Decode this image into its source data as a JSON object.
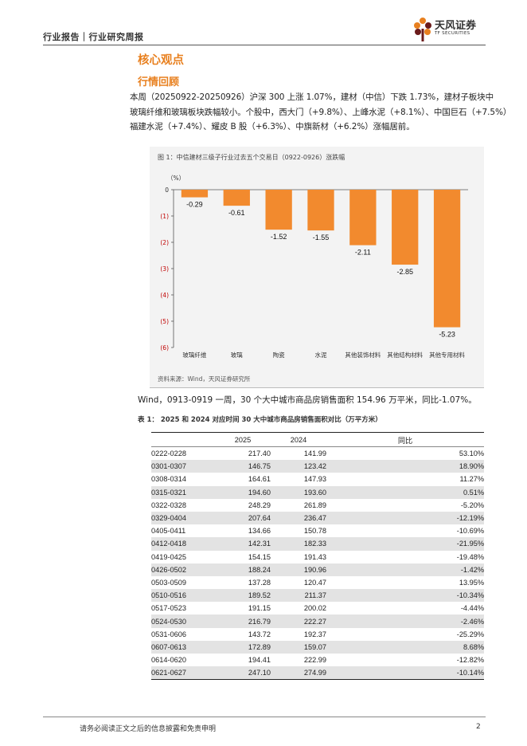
{
  "header": {
    "text": "行业报告｜行业研究周报",
    "logo_name": "天风证券",
    "logo_sub": "TF SECURITIES"
  },
  "sections": {
    "h1": "核心观点",
    "h2": "行情回顾"
  },
  "paragraph": {
    "line1": "本周（20250922-20250926）沪深 300 上涨 1.07%，建材（中信）下跌 1.73%，建材子板块中",
    "line2": "玻璃纤维和玻璃板块跌幅较小。个股中，西大门（+9.8%）、上峰水泥（+8.1%）、中国巨石（+7.5%）",
    "line3": "福建水泥（+7.4%）、耀皮 B 股（+6.3%）、中旗新材（+6.2%）涨幅居前。"
  },
  "figure": {
    "title": "图 1：中信建材三级子行业过去五个交易日（0922-0926）涨跌幅",
    "source": "资料来源：Wind，天风证券研究所"
  },
  "chart_data": {
    "type": "bar",
    "title": "图 1：中信建材三级子行业过去五个交易日（0922-0926）涨跌幅",
    "ylabel": "（%）",
    "categories": [
      "玻璃纤维",
      "玻璃",
      "陶瓷",
      "水泥",
      "其他装饰材料",
      "其他结构材料",
      "其他专用材料"
    ],
    "values": [
      -0.29,
      -0.61,
      -1.52,
      -1.55,
      -2.11,
      -2.85,
      -5.23
    ],
    "value_labels": [
      "-0.29",
      "-0.61",
      "-1.52",
      "-1.55",
      "-2.11",
      "-2.85",
      "-5.23"
    ],
    "y_ticks": [
      0,
      -1,
      -2,
      -3,
      -4,
      -5,
      -6
    ],
    "y_tick_labels": [
      "0",
      "(1)",
      "(2)",
      "(3)",
      "(4)",
      "(5)",
      "(6)"
    ],
    "ylim": [
      -6,
      0
    ],
    "bar_color": "#F28A2E",
    "grid": false
  },
  "wind_line": "Wind，0913-0919 一周，30 个大中城市商品房销售面积 154.96 万平米，同比-1.07%。",
  "table": {
    "title": "表 1：  2025 和 2024 对应时间 30 大中城市商品房销售面积对比（万平方米）",
    "headers": [
      "",
      "2025",
      "2024",
      "同比"
    ],
    "rows": [
      [
        "0222-0228",
        "217.40",
        "141.99",
        "53.10%"
      ],
      [
        "0301-0307",
        "146.75",
        "123.42",
        "18.90%"
      ],
      [
        "0308-0314",
        "164.61",
        "147.93",
        "11.27%"
      ],
      [
        "0315-0321",
        "194.60",
        "193.60",
        "0.51%"
      ],
      [
        "0322-0328",
        "248.29",
        "261.89",
        "-5.20%"
      ],
      [
        "0329-0404",
        "207.64",
        "236.47",
        "-12.19%"
      ],
      [
        "0405-0411",
        "134.66",
        "150.78",
        "-10.69%"
      ],
      [
        "0412-0418",
        "142.31",
        "182.33",
        "-21.95%"
      ],
      [
        "0419-0425",
        "154.15",
        "191.43",
        "-19.48%"
      ],
      [
        "0426-0502",
        "188.24",
        "190.96",
        "-1.42%"
      ],
      [
        "0503-0509",
        "137.28",
        "120.47",
        "13.95%"
      ],
      [
        "0510-0516",
        "189.52",
        "211.37",
        "-10.34%"
      ],
      [
        "0517-0523",
        "191.15",
        "200.02",
        "-4.44%"
      ],
      [
        "0524-0530",
        "216.79",
        "222.27",
        "-2.46%"
      ],
      [
        "0531-0606",
        "143.72",
        "192.37",
        "-25.29%"
      ],
      [
        "0607-0613",
        "172.89",
        "159.07",
        "8.68%"
      ],
      [
        "0614-0620",
        "194.41",
        "222.99",
        "-12.82%"
      ],
      [
        "0621-0627",
        "247.10",
        "274.99",
        "-10.14%"
      ]
    ]
  },
  "footer": {
    "text": "请务必阅读正文之后的信息披露和免责申明",
    "page": "2"
  },
  "colors": {
    "accent": "#E8801F",
    "bar": "#F28A2E"
  }
}
